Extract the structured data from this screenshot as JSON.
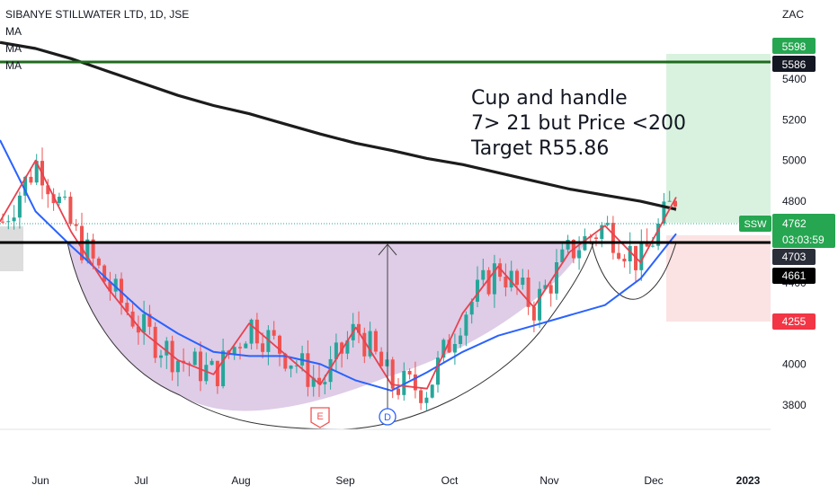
{
  "header": {
    "symbol_line": "SIBANYE STILLWATER LTD, 1D, JSE",
    "indicators": [
      "MA",
      "MA",
      "MA"
    ],
    "currency": "ZAC"
  },
  "annotation": {
    "lines": [
      "Cup and handle",
      "7> 21 but Price <200",
      "Target R55.86"
    ]
  },
  "price_tags": {
    "target_top": "5598",
    "resistance": "5586",
    "ticker": "SSW",
    "last": "4762",
    "countdown": "03:03:59",
    "ma_200": "4703",
    "ma_21": "4661",
    "stop": "4255"
  },
  "colors": {
    "up": "#26a69a",
    "down": "#ef5350",
    "ma_fast": "#e8424f",
    "ma_mid": "#2962ff",
    "ma_slow": "#1c1c1c",
    "cup_fill": "#d9c3e3",
    "profit_zone": "#d9f2df",
    "loss_zone": "#fbe3e3",
    "resistance_line": "#1e6b1e",
    "tag_green": "#26a651",
    "tag_red": "#f23645"
  },
  "markers": {
    "earnings": "E",
    "dividend": "D"
  },
  "chart_data": {
    "type": "candlestick",
    "y_axis": {
      "ticks": [
        3800,
        4000,
        4200,
        4400,
        4600,
        4800,
        5000,
        5200,
        5400
      ],
      "range": [
        3680,
        5700
      ]
    },
    "x_axis": {
      "labels": [
        "Jun",
        "Jul",
        "Aug",
        "Sep",
        "Oct",
        "Nov",
        "Dec",
        "2023"
      ]
    },
    "series": [
      {
        "kind": "ma",
        "color_key": "ma_slow",
        "values": [
          5580,
          5550,
          5500,
          5440,
          5380,
          5320,
          5270,
          5230,
          5180,
          5130,
          5085,
          5050,
          5010,
          4980,
          4940,
          4900,
          4860,
          4830,
          4800,
          4760
        ]
      },
      {
        "kind": "ma",
        "color_key": "ma_mid",
        "values": [
          5100,
          4750,
          4580,
          4420,
          4260,
          4150,
          4060,
          4040,
          4040,
          4000,
          3920,
          3870,
          3960,
          4060,
          4140,
          4190,
          4240,
          4290,
          4420,
          4640
        ]
      },
      {
        "kind": "ma",
        "color_key": "ma_fast",
        "values": [
          4700,
          5000,
          4650,
          4380,
          4160,
          4020,
          3950,
          4200,
          4050,
          3900,
          4180,
          3900,
          3880,
          4250,
          4480,
          4280,
          4550,
          4680,
          4500,
          4820
        ]
      }
    ],
    "horizontal_levels": [
      5586,
      4703
    ],
    "cup_bottom": 3650,
    "cup_rim": 4703,
    "target_zone": [
      4762,
      5598
    ],
    "stop_zone": [
      4255,
      4762
    ]
  }
}
